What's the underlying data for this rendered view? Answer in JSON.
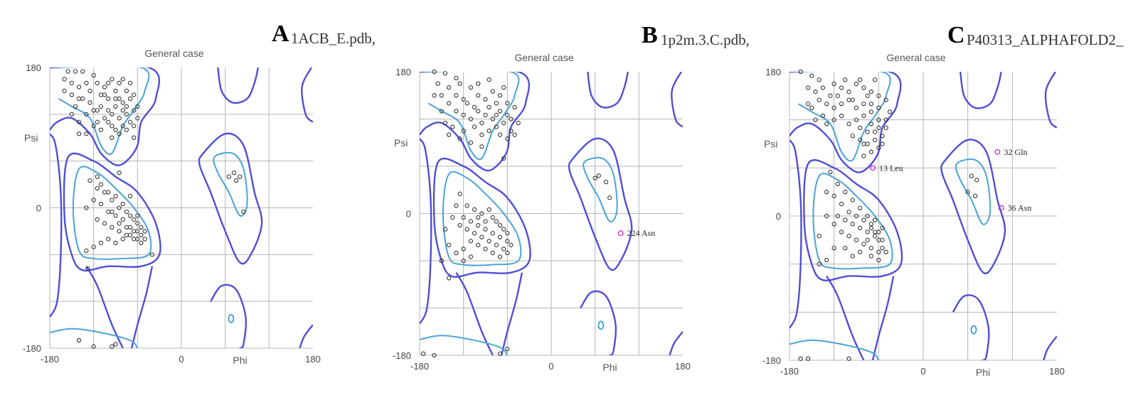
{
  "colors": {
    "allowed": "#4f4fd6",
    "favored": "#4aa3d8",
    "grid": "#b5b5b5",
    "point": "#333333",
    "outlier": "#d02ad0"
  },
  "chart_data": [
    {
      "type": "scatter",
      "letter": "A",
      "file": "1ACB_E.pdb,",
      "title": "General case",
      "xlabel": "Phi",
      "ylabel": "Psi",
      "xlim": [
        -180,
        180
      ],
      "ylim": [
        -180,
        180
      ],
      "xticks": [
        "-180",
        "0",
        "180"
      ],
      "yticks": [
        "180",
        "0",
        "-180"
      ],
      "grid": true,
      "points": [
        [
          -155,
          175
        ],
        [
          -145,
          175
        ],
        [
          -135,
          175
        ],
        [
          -150,
          160
        ],
        [
          -140,
          155
        ],
        [
          -130,
          160
        ],
        [
          -160,
          150
        ],
        [
          -150,
          145
        ],
        [
          -140,
          140
        ],
        [
          -125,
          150
        ],
        [
          -115,
          160
        ],
        [
          -105,
          155
        ],
        [
          -95,
          165
        ],
        [
          -85,
          160
        ],
        [
          -75,
          150
        ],
        [
          -70,
          140
        ],
        [
          -80,
          135
        ],
        [
          -90,
          130
        ],
        [
          -100,
          140
        ],
        [
          -110,
          130
        ],
        [
          -120,
          125
        ],
        [
          -130,
          120
        ],
        [
          -115,
          110
        ],
        [
          -105,
          115
        ],
        [
          -95,
          120
        ],
        [
          -85,
          115
        ],
        [
          -75,
          120
        ],
        [
          -65,
          125
        ],
        [
          -60,
          130
        ],
        [
          -70,
          110
        ],
        [
          -80,
          105
        ],
        [
          -90,
          100
        ],
        [
          -100,
          110
        ],
        [
          -110,
          100
        ],
        [
          -120,
          105
        ],
        [
          -130,
          95
        ],
        [
          -85,
          95
        ],
        [
          -75,
          100
        ],
        [
          -65,
          105
        ],
        [
          -95,
          90
        ],
        [
          -140,
          95
        ],
        [
          -120,
          170
        ],
        [
          -105,
          145
        ],
        [
          -90,
          150
        ],
        [
          -80,
          165
        ],
        [
          -65,
          145
        ],
        [
          -160,
          165
        ],
        [
          -145,
          130
        ],
        [
          -100,
          160
        ],
        [
          -85,
          140
        ],
        [
          -70,
          160
        ],
        [
          -60,
          115
        ],
        [
          -110,
          145
        ],
        [
          -125,
          135
        ],
        [
          -95,
          105
        ],
        [
          -80,
          125
        ],
        [
          -150,
          120
        ],
        [
          -115,
          125
        ],
        [
          -100,
          125
        ],
        [
          -90,
          140
        ],
        [
          -75,
          130
        ],
        [
          -135,
          140
        ],
        [
          -65,
          90
        ],
        [
          -140,
          110
        ],
        [
          -85,
          45
        ],
        [
          -125,
          35
        ],
        [
          -115,
          25
        ],
        [
          -105,
          20
        ],
        [
          -95,
          10
        ],
        [
          -85,
          0
        ],
        [
          -75,
          -5
        ],
        [
          -70,
          -10
        ],
        [
          -65,
          -15
        ],
        [
          -60,
          -20
        ],
        [
          -55,
          -25
        ],
        [
          -50,
          -30
        ],
        [
          -60,
          -30
        ],
        [
          -70,
          -25
        ],
        [
          -80,
          -15
        ],
        [
          -90,
          -10
        ],
        [
          -100,
          -5
        ],
        [
          -110,
          5
        ],
        [
          -120,
          10
        ],
        [
          -130,
          0
        ],
        [
          -115,
          -15
        ],
        [
          -105,
          -20
        ],
        [
          -95,
          -25
        ],
        [
          -85,
          -30
        ],
        [
          -75,
          -35
        ],
        [
          -65,
          -40
        ],
        [
          -55,
          -45
        ],
        [
          -60,
          -40
        ],
        [
          -70,
          -35
        ],
        [
          -80,
          -40
        ],
        [
          -90,
          -45
        ],
        [
          -100,
          -40
        ],
        [
          -110,
          -45
        ],
        [
          -120,
          -50
        ],
        [
          -130,
          -55
        ],
        [
          -95,
          -5
        ],
        [
          -85,
          -20
        ],
        [
          -75,
          -25
        ],
        [
          -65,
          -30
        ],
        [
          -55,
          -35
        ],
        [
          -50,
          -40
        ],
        [
          -80,
          5
        ],
        [
          -90,
          15
        ],
        [
          -100,
          20
        ],
        [
          -110,
          30
        ],
        [
          -70,
          15
        ],
        [
          -60,
          -10
        ],
        [
          -115,
          40
        ],
        [
          -40,
          -60
        ],
        [
          -128,
          -78
        ],
        [
          65,
          40
        ],
        [
          72,
          45
        ],
        [
          80,
          40
        ],
        [
          85,
          -5
        ],
        [
          75,
          35
        ],
        [
          -140,
          -170
        ],
        [
          -120,
          -178
        ],
        [
          -95,
          -178
        ],
        [
          -90,
          -175
        ]
      ],
      "outliers": []
    },
    {
      "type": "scatter",
      "letter": "B",
      "file": "1p2m.3.C.pdb,",
      "title": "General case",
      "xlabel": "Phi",
      "ylabel": "Psi",
      "xlim": [
        -180,
        180
      ],
      "ylim": [
        -180,
        180
      ],
      "xticks": [
        "-180",
        "0",
        "180"
      ],
      "yticks": [
        "180",
        "0",
        "-180"
      ],
      "grid": true,
      "points": [
        [
          -160,
          180
        ],
        [
          -145,
          178
        ],
        [
          -130,
          172
        ],
        [
          -155,
          165
        ],
        [
          -140,
          160
        ],
        [
          -125,
          165
        ],
        [
          -110,
          160
        ],
        [
          -100,
          150
        ],
        [
          -90,
          145
        ],
        [
          -80,
          155
        ],
        [
          -70,
          150
        ],
        [
          -60,
          140
        ],
        [
          -50,
          135
        ],
        [
          -60,
          125
        ],
        [
          -70,
          130
        ],
        [
          -80,
          120
        ],
        [
          -90,
          125
        ],
        [
          -100,
          130
        ],
        [
          -110,
          120
        ],
        [
          -120,
          125
        ],
        [
          -130,
          130
        ],
        [
          -140,
          140
        ],
        [
          -150,
          130
        ],
        [
          -145,
          115
        ],
        [
          -135,
          110
        ],
        [
          -120,
          105
        ],
        [
          -105,
          110
        ],
        [
          -95,
          100
        ],
        [
          -85,
          105
        ],
        [
          -75,
          110
        ],
        [
          -65,
          115
        ],
        [
          -55,
          120
        ],
        [
          -45,
          115
        ],
        [
          -50,
          100
        ],
        [
          -60,
          95
        ],
        [
          -70,
          100
        ],
        [
          -110,
          90
        ],
        [
          -125,
          95
        ],
        [
          -140,
          100
        ],
        [
          -100,
          165
        ],
        [
          -85,
          170
        ],
        [
          -120,
          145
        ],
        [
          -105,
          135
        ],
        [
          -75,
          140
        ],
        [
          -65,
          160
        ],
        [
          -150,
          150
        ],
        [
          -130,
          150
        ],
        [
          -115,
          140
        ],
        [
          -95,
          115
        ],
        [
          -85,
          135
        ],
        [
          -75,
          125
        ],
        [
          -55,
          105
        ],
        [
          -95,
          85
        ],
        [
          -65,
          70
        ],
        [
          -160,
          150
        ],
        [
          -130,
          10
        ],
        [
          -120,
          -5
        ],
        [
          -110,
          -10
        ],
        [
          -100,
          -15
        ],
        [
          -90,
          -20
        ],
        [
          -80,
          -25
        ],
        [
          -70,
          -30
        ],
        [
          -60,
          -35
        ],
        [
          -55,
          -40
        ],
        [
          -65,
          -45
        ],
        [
          -75,
          -40
        ],
        [
          -85,
          -35
        ],
        [
          -95,
          -30
        ],
        [
          -105,
          -25
        ],
        [
          -115,
          -20
        ],
        [
          -125,
          -15
        ],
        [
          -135,
          -5
        ],
        [
          -145,
          -20
        ],
        [
          -110,
          -35
        ],
        [
          -100,
          -40
        ],
        [
          -90,
          -45
        ],
        [
          -80,
          -50
        ],
        [
          -70,
          -55
        ],
        [
          -60,
          -50
        ],
        [
          -120,
          -45
        ],
        [
          -130,
          -50
        ],
        [
          -140,
          -40
        ],
        [
          -95,
          0
        ],
        [
          -85,
          5
        ],
        [
          -75,
          -10
        ],
        [
          -65,
          -20
        ],
        [
          -105,
          5
        ],
        [
          -115,
          10
        ],
        [
          -60,
          -25
        ],
        [
          -70,
          -15
        ],
        [
          -80,
          -5
        ],
        [
          -90,
          -10
        ],
        [
          -100,
          -5
        ],
        [
          -120,
          -60
        ],
        [
          -110,
          -55
        ],
        [
          -125,
          25
        ],
        [
          -150,
          -60
        ],
        [
          -140,
          -82
        ],
        [
          60,
          45
        ],
        [
          65,
          48
        ],
        [
          75,
          40
        ],
        [
          80,
          20
        ],
        [
          -175,
          -178
        ],
        [
          -160,
          -180
        ],
        [
          -60,
          -172
        ],
        [
          -70,
          -178
        ]
      ],
      "outliers": [
        [
          95,
          -25,
          "224 Asn"
        ]
      ]
    },
    {
      "type": "scatter",
      "letter": "C",
      "file": "P40313_ALPHAFOLD2_",
      "title": "General case",
      "xlabel": "Phi",
      "ylabel": "Psi",
      "xlim": [
        -180,
        180
      ],
      "ylim": [
        -180,
        180
      ],
      "xticks": [
        "-180",
        "0",
        "180"
      ],
      "yticks": [
        "180",
        "0",
        "-180"
      ],
      "grid": true,
      "points": [
        [
          -165,
          180
        ],
        [
          -150,
          175
        ],
        [
          -140,
          170
        ],
        [
          -155,
          160
        ],
        [
          -145,
          155
        ],
        [
          -135,
          160
        ],
        [
          -120,
          165
        ],
        [
          -110,
          160
        ],
        [
          -100,
          155
        ],
        [
          -90,
          165
        ],
        [
          -80,
          160
        ],
        [
          -70,
          155
        ],
        [
          -60,
          150
        ],
        [
          -50,
          145
        ],
        [
          -60,
          135
        ],
        [
          -70,
          130
        ],
        [
          -80,
          140
        ],
        [
          -90,
          135
        ],
        [
          -100,
          145
        ],
        [
          -110,
          140
        ],
        [
          -120,
          135
        ],
        [
          -130,
          140
        ],
        [
          -140,
          145
        ],
        [
          -150,
          135
        ],
        [
          -145,
          120
        ],
        [
          -130,
          115
        ],
        [
          -120,
          120
        ],
        [
          -110,
          125
        ],
        [
          -100,
          115
        ],
        [
          -90,
          120
        ],
        [
          -80,
          125
        ],
        [
          -70,
          115
        ],
        [
          -60,
          110
        ],
        [
          -50,
          120
        ],
        [
          -45,
          130
        ],
        [
          -55,
          100
        ],
        [
          -65,
          95
        ],
        [
          -75,
          105
        ],
        [
          -85,
          110
        ],
        [
          -95,
          100
        ],
        [
          -60,
          85
        ],
        [
          -70,
          80
        ],
        [
          -80,
          75
        ],
        [
          -135,
          125
        ],
        [
          -115,
          150
        ],
        [
          -95,
          145
        ],
        [
          -75,
          150
        ],
        [
          -65,
          170
        ],
        [
          -85,
          170
        ],
        [
          -105,
          170
        ],
        [
          -125,
          150
        ],
        [
          -155,
          140
        ],
        [
          -50,
          110
        ],
        [
          -60,
          120
        ],
        [
          -70,
          140
        ],
        [
          -80,
          90
        ],
        [
          -65,
          105
        ],
        [
          -55,
          90
        ],
        [
          -75,
          90
        ],
        [
          -85,
          95
        ],
        [
          -125,
          55
        ],
        [
          -115,
          40
        ],
        [
          -105,
          30
        ],
        [
          -95,
          20
        ],
        [
          -85,
          10
        ],
        [
          -75,
          0
        ],
        [
          -70,
          -10
        ],
        [
          -65,
          -20
        ],
        [
          -60,
          -30
        ],
        [
          -55,
          -40
        ],
        [
          -50,
          -45
        ],
        [
          -60,
          -45
        ],
        [
          -70,
          -40
        ],
        [
          -80,
          -35
        ],
        [
          -90,
          -30
        ],
        [
          -100,
          -25
        ],
        [
          -110,
          -20
        ],
        [
          -120,
          -10
        ],
        [
          -130,
          0
        ],
        [
          -115,
          0
        ],
        [
          -105,
          -5
        ],
        [
          -95,
          -10
        ],
        [
          -85,
          -15
        ],
        [
          -75,
          -20
        ],
        [
          -65,
          -25
        ],
        [
          -55,
          -30
        ],
        [
          -60,
          -20
        ],
        [
          -70,
          -15
        ],
        [
          -80,
          -5
        ],
        [
          -90,
          0
        ],
        [
          -100,
          5
        ],
        [
          -110,
          15
        ],
        [
          -120,
          25
        ],
        [
          -130,
          30
        ],
        [
          -65,
          -5
        ],
        [
          -55,
          -15
        ],
        [
          -75,
          -30
        ],
        [
          -85,
          -45
        ],
        [
          -95,
          -50
        ],
        [
          -105,
          -40
        ],
        [
          -120,
          -40
        ],
        [
          -130,
          -55
        ],
        [
          -140,
          -25
        ],
        [
          -140,
          -60
        ],
        [
          -60,
          -55
        ],
        [
          -70,
          -50
        ],
        [
          65,
          50
        ],
        [
          72,
          45
        ],
        [
          60,
          30
        ],
        [
          70,
          25
        ],
        [
          -165,
          -178
        ],
        [
          -155,
          -178
        ],
        [
          -100,
          -178
        ]
      ],
      "outliers": [
        [
          -68,
          60,
          "13 Leu"
        ],
        [
          100,
          80,
          "32 Gln"
        ],
        [
          105,
          10,
          "36 Asn"
        ]
      ]
    }
  ]
}
